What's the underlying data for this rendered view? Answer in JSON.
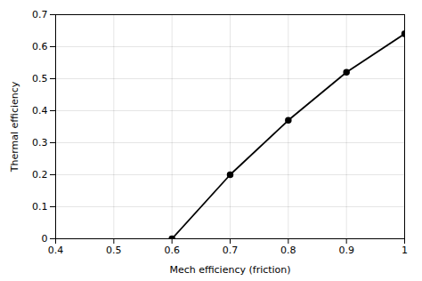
{
  "chart_data": {
    "type": "line",
    "x": [
      0.6,
      0.7,
      0.8,
      0.9,
      1.0
    ],
    "values": [
      0.0,
      0.2,
      0.37,
      0.52,
      0.64
    ],
    "xlabel": "Mech efficiency (friction)",
    "ylabel": "Thermal efficiency",
    "xlim": [
      0.4,
      1.0
    ],
    "ylim": [
      0.0,
      0.7
    ],
    "xticks": [
      0.4,
      0.5,
      0.6,
      0.7,
      0.8,
      0.9,
      1.0
    ],
    "yticks": [
      0.0,
      0.1,
      0.2,
      0.3,
      0.4,
      0.5,
      0.6,
      0.7
    ],
    "color": "#000000",
    "marker": "circle",
    "grid": true
  }
}
